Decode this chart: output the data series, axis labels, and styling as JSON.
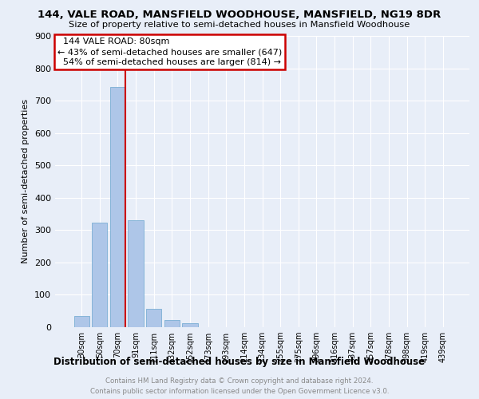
{
  "title": "144, VALE ROAD, MANSFIELD WOODHOUSE, MANSFIELD, NG19 8DR",
  "subtitle": "Size of property relative to semi-detached houses in Mansfield Woodhouse",
  "xlabel_bottom": "Distribution of semi-detached houses by size in Mansfield Woodhouse",
  "ylabel": "Number of semi-detached properties",
  "bin_labels": [
    "30sqm",
    "50sqm",
    "70sqm",
    "91sqm",
    "111sqm",
    "132sqm",
    "152sqm",
    "173sqm",
    "193sqm",
    "214sqm",
    "234sqm",
    "255sqm",
    "275sqm",
    "296sqm",
    "316sqm",
    "337sqm",
    "357sqm",
    "378sqm",
    "398sqm",
    "419sqm",
    "439sqm"
  ],
  "bar_heights": [
    35,
    322,
    743,
    330,
    57,
    22,
    13,
    0,
    0,
    0,
    0,
    0,
    0,
    0,
    0,
    0,
    0,
    0,
    0,
    0,
    0
  ],
  "property_label": "144 VALE ROAD: 80sqm",
  "pct_smaller": 43,
  "pct_larger": 54,
  "n_smaller": 647,
  "n_larger": 814,
  "bar_color": "#aec6e8",
  "bar_edge_color": "#7aafd4",
  "red_line_color": "#cc0000",
  "annotation_box_edge": "#cc0000",
  "background_color": "#e8eef8",
  "grid_color": "#ffffff",
  "footer_line1": "Contains HM Land Registry data © Crown copyright and database right 2024.",
  "footer_line2": "Contains public sector information licensed under the Open Government Licence v3.0.",
  "ylim": [
    0,
    900
  ],
  "yticks": [
    0,
    100,
    200,
    300,
    400,
    500,
    600,
    700,
    800,
    900
  ]
}
